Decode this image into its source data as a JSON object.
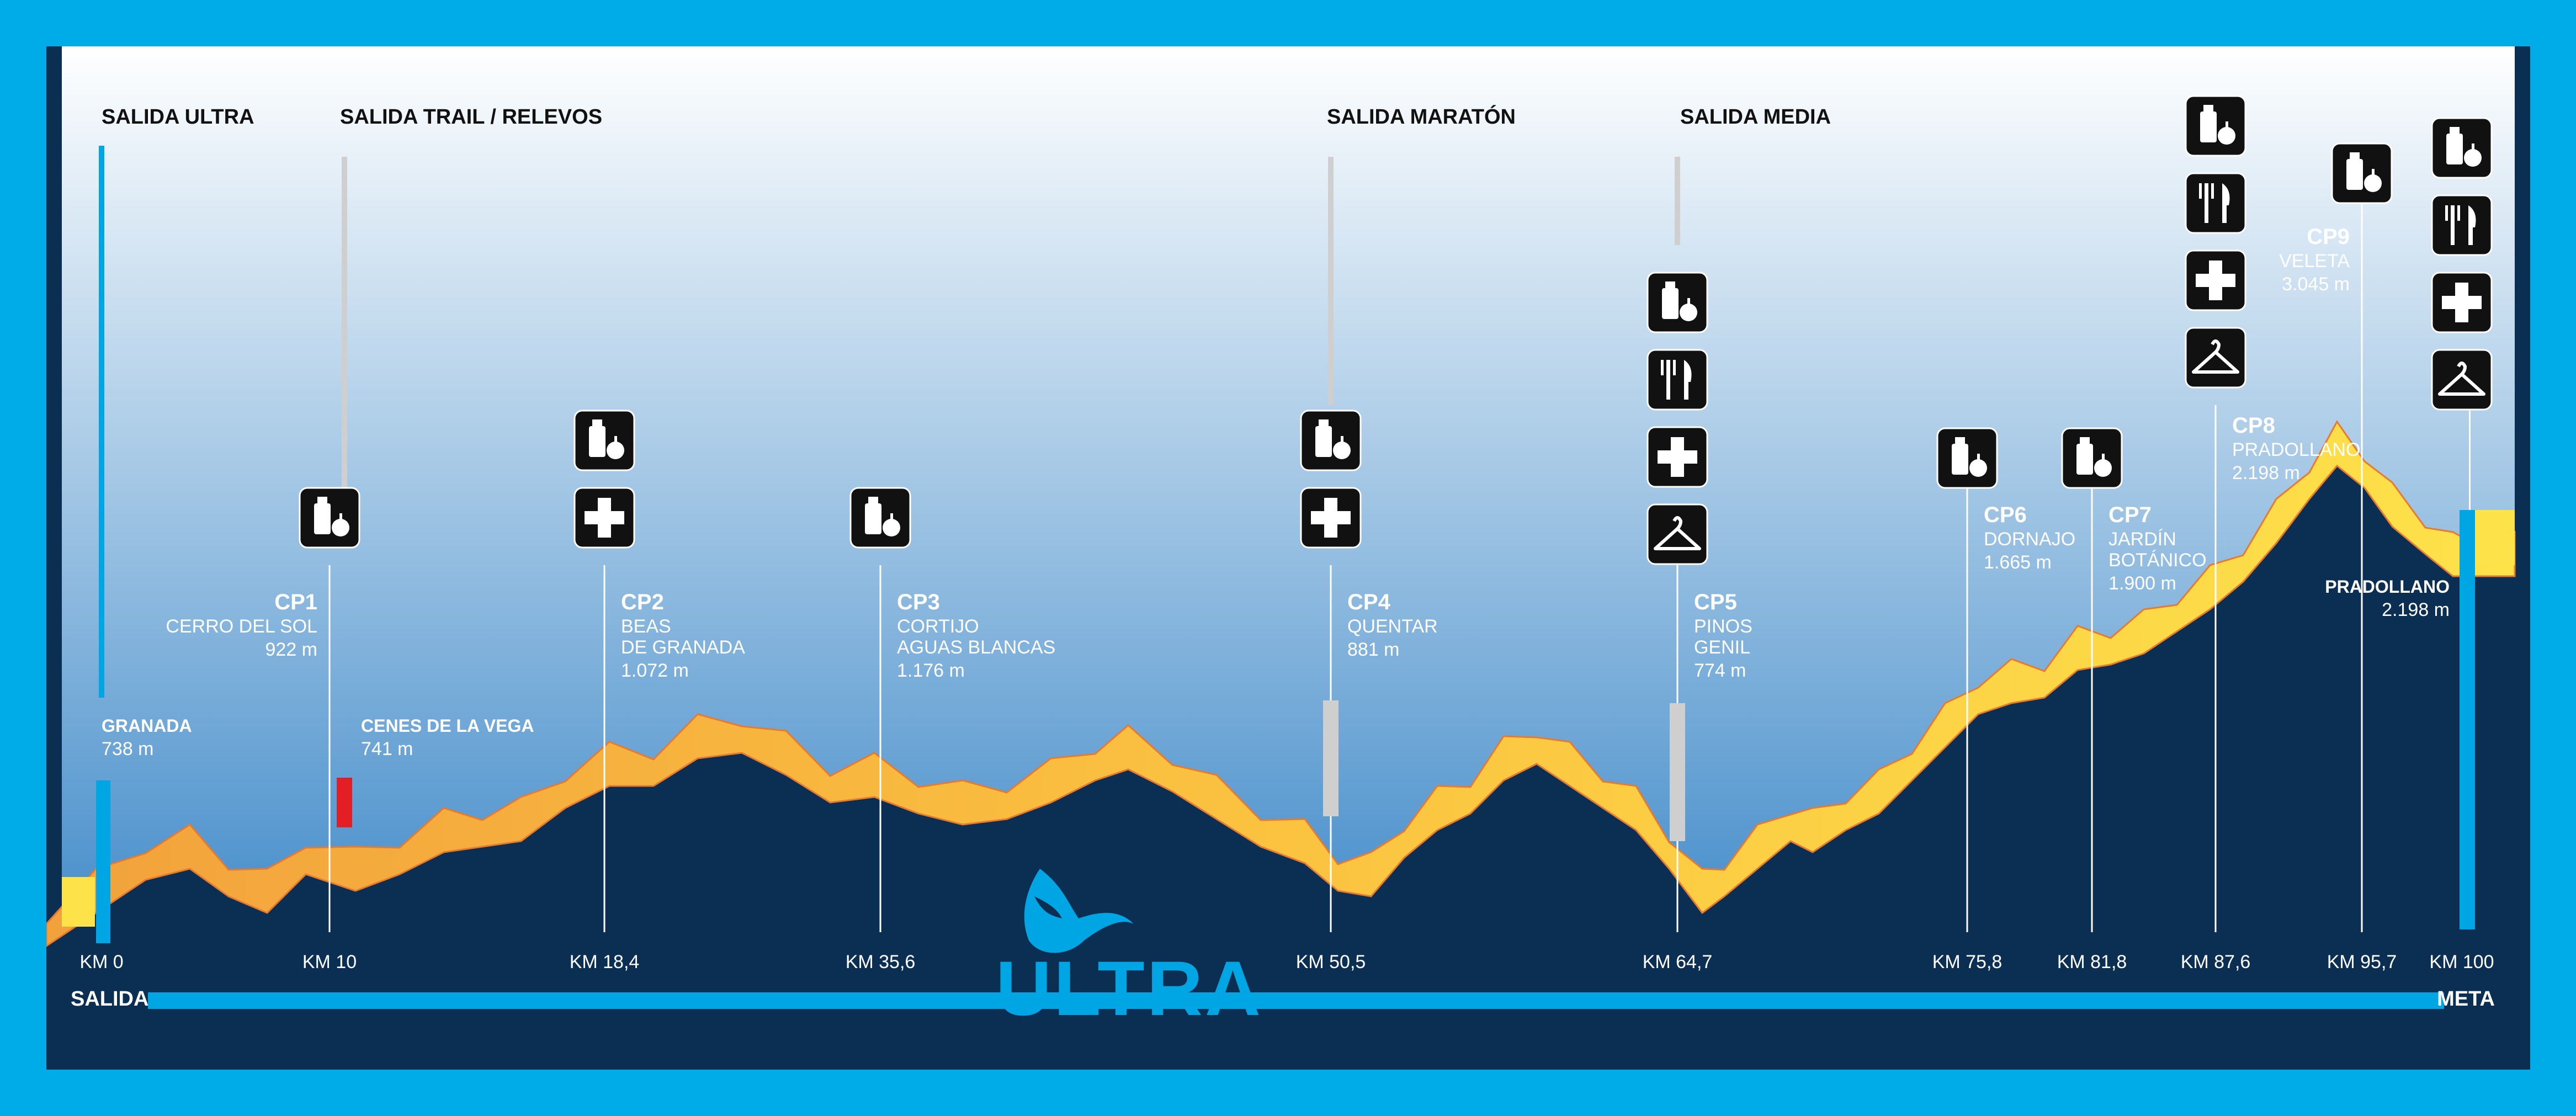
{
  "colors": {
    "outer_border": "#00ace8",
    "sky_top": "#ffffff",
    "sky_bottom": "#2e7fc4",
    "terrain": "#0b2f52",
    "ribbon_light": "#fde24a",
    "ribbon_dark": "#f2a23c",
    "accent_blue": "#00a6e3",
    "start_marker_grey": "#cfcfcf",
    "cenes_marker_red": "#e31e24",
    "white": "#ffffff"
  },
  "starts": [
    {
      "label": "SALIDA ULTRA",
      "color": "accent_blue"
    },
    {
      "label": "SALIDA TRAIL / RELEVOS",
      "color": "start_marker_grey"
    },
    {
      "label": "SALIDA MARATÓN",
      "color": "start_marker_grey"
    },
    {
      "label": "SALIDA MEDIA",
      "color": "start_marker_grey"
    }
  ],
  "points": [
    {
      "id": "granada",
      "name_bold": "GRANADA",
      "altitude": "738 m",
      "km_label": "KM 0",
      "icons": []
    },
    {
      "id": "cp1",
      "cp": "CP1",
      "name": [
        "CERRO DEL SOL"
      ],
      "altitude": "922 m",
      "km_label": "KM 10",
      "icons": [
        "water-food-icon"
      ]
    },
    {
      "id": "cenes",
      "name_bold": "CENES DE LA VEGA",
      "altitude": "741 m",
      "icons": []
    },
    {
      "id": "cp2",
      "cp": "CP2",
      "name": [
        "BEAS",
        "DE GRANADA"
      ],
      "altitude": "1.072 m",
      "km_label": "KM 18,4",
      "icons": [
        "water-food-icon",
        "first-aid-icon"
      ]
    },
    {
      "id": "cp3",
      "cp": "CP3",
      "name": [
        "CORTIJO",
        "AGUAS BLANCAS"
      ],
      "altitude": "1.176 m",
      "km_label": "KM 35,6",
      "icons": [
        "water-food-icon"
      ]
    },
    {
      "id": "cp4",
      "cp": "CP4",
      "name": [
        "QUENTAR"
      ],
      "altitude": "881 m",
      "km_label": "KM 50,5",
      "icons": [
        "water-food-icon",
        "first-aid-icon"
      ]
    },
    {
      "id": "cp5",
      "cp": "CP5",
      "name": [
        "PINOS",
        "GENIL"
      ],
      "altitude": "774 m",
      "km_label": "KM 64,7",
      "icons": [
        "water-food-icon",
        "meal-icon",
        "first-aid-icon",
        "hanger-icon"
      ]
    },
    {
      "id": "cp6",
      "cp": "CP6",
      "name": [
        "DORNAJO"
      ],
      "altitude": "1.665 m",
      "km_label": "KM 75,8",
      "icons": [
        "water-food-icon"
      ]
    },
    {
      "id": "cp7",
      "cp": "CP7",
      "name": [
        "JARDÍN",
        "BOTÁNICO"
      ],
      "altitude": "1.900 m",
      "km_label": "KM 81,8",
      "icons": [
        "water-food-icon"
      ]
    },
    {
      "id": "cp8",
      "cp": "CP8",
      "name": [
        "PRADOLLANO"
      ],
      "altitude": "2.198 m",
      "km_label": "KM 87,6",
      "icons": [
        "water-food-icon",
        "meal-icon",
        "first-aid-icon",
        "hanger-icon"
      ]
    },
    {
      "id": "cp9",
      "cp": "CP9",
      "name": [
        "VELETA"
      ],
      "altitude": "3.045 m",
      "km_label": "KM 95,7",
      "icons": [
        "water-food-icon"
      ]
    },
    {
      "id": "meta",
      "name_bold": "PRADOLLANO",
      "altitude": "2.198 m",
      "km_label": "KM 100",
      "icons": [
        "water-food-icon",
        "meal-icon",
        "first-aid-icon",
        "hanger-icon"
      ]
    }
  ],
  "progress_bar": {
    "start_label": "SALIDA",
    "end_label": "META"
  },
  "logo": {
    "text": "ULTRA"
  }
}
